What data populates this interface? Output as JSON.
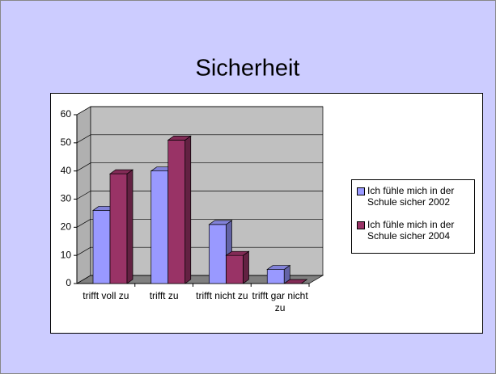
{
  "chart_data": {
    "type": "bar3d",
    "title": "Sicherheit",
    "categories": [
      "trifft voll zu",
      "trifft zu",
      "trifft nicht zu",
      "trifft gar nicht zu"
    ],
    "series": [
      {
        "name": "Ich fühle mich in der Schule sicher 2002",
        "color": "#9999ff",
        "values": [
          26,
          40,
          21,
          5
        ]
      },
      {
        "name": "Ich fühle mich in der Schule sicher 2004",
        "color": "#993366",
        "values": [
          39,
          51,
          10,
          0
        ]
      }
    ],
    "ylim": [
      0,
      60
    ],
    "yticks": [
      0,
      10,
      20,
      30,
      40,
      50,
      60
    ],
    "grid": true,
    "legend": "right"
  }
}
